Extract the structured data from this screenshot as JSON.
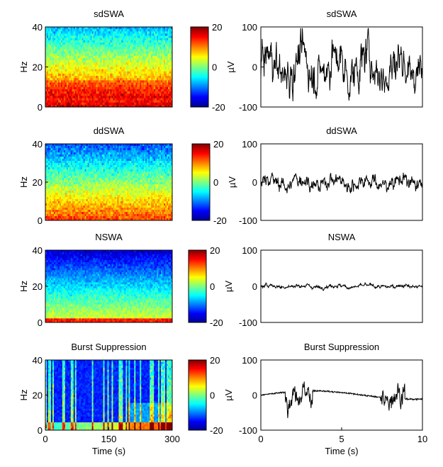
{
  "chart_data": [
    {
      "type": "heatmap",
      "title": "sdSWA",
      "ylabel": "Hz",
      "ylim": [
        0,
        40
      ],
      "yticks": [
        "0",
        "20",
        "40"
      ],
      "xlim": [
        0,
        300
      ],
      "colorbar": {
        "ticks": [
          "20",
          "0",
          "-20"
        ],
        "label": "µV",
        "range": [
          -20,
          20
        ]
      },
      "pattern": "continuous"
    },
    {
      "type": "line",
      "title": "sdSWA",
      "ylim": [
        -100,
        100
      ],
      "yticks": [
        "100",
        "0",
        "-100"
      ],
      "xlim": [
        0,
        10
      ],
      "series": [
        {
          "amplitude": 70,
          "style": "high-amplitude slow waves"
        }
      ]
    },
    {
      "type": "heatmap",
      "title": "ddSWA",
      "ylabel": "Hz",
      "ylim": [
        0,
        40
      ],
      "yticks": [
        "0",
        "20",
        "40"
      ],
      "xlim": [
        0,
        300
      ],
      "colorbar": {
        "ticks": [
          "20",
          "0",
          "-20"
        ],
        "label": "µV",
        "range": [
          -20,
          20
        ]
      },
      "pattern": "continuous"
    },
    {
      "type": "line",
      "title": "ddSWA",
      "ylim": [
        -100,
        100
      ],
      "yticks": [
        "100",
        "0",
        "-100"
      ],
      "xlim": [
        0,
        10
      ],
      "series": [
        {
          "amplitude": 25,
          "style": "medium-amplitude slow waves"
        }
      ]
    },
    {
      "type": "heatmap",
      "title": "NSWA",
      "ylabel": "Hz",
      "ylim": [
        0,
        40
      ],
      "yticks": [
        "0",
        "20",
        "40"
      ],
      "xlim": [
        0,
        300
      ],
      "colorbar": {
        "ticks": [
          "20",
          "0",
          "-20"
        ],
        "label": "µV",
        "range": [
          -20,
          20
        ]
      },
      "pattern": "low"
    },
    {
      "type": "line",
      "title": "NSWA",
      "ylim": [
        -100,
        100
      ],
      "yticks": [
        "100",
        "0",
        "-100"
      ],
      "xlim": [
        0,
        10
      ],
      "series": [
        {
          "amplitude": 7,
          "style": "low-amplitude"
        }
      ]
    },
    {
      "type": "heatmap",
      "title": "Burst Suppression",
      "ylabel": "Hz",
      "xlabel": "Time (s)",
      "ylim": [
        0,
        40
      ],
      "yticks": [
        "0",
        "20",
        "40"
      ],
      "xlim": [
        0,
        300
      ],
      "xticks": [
        "0",
        "150",
        "300"
      ],
      "colorbar": {
        "ticks": [
          "20",
          "0",
          "-20"
        ],
        "label": "µV",
        "range": [
          -20,
          20
        ]
      },
      "pattern": "bursts"
    },
    {
      "type": "line",
      "title": "Burst Suppression",
      "xlabel": "Time (s)",
      "ylim": [
        -100,
        100
      ],
      "yticks": [
        "100",
        "0",
        "-100"
      ],
      "xlim": [
        0,
        10
      ],
      "xticks": [
        "0",
        "5",
        "10"
      ],
      "series": [
        {
          "amplitude": 40,
          "style": "bursts separated by flat suppression",
          "bursts_s": [
            [
              1.5,
              3.2
            ],
            [
              7.4,
              8.9
            ]
          ]
        }
      ]
    }
  ]
}
